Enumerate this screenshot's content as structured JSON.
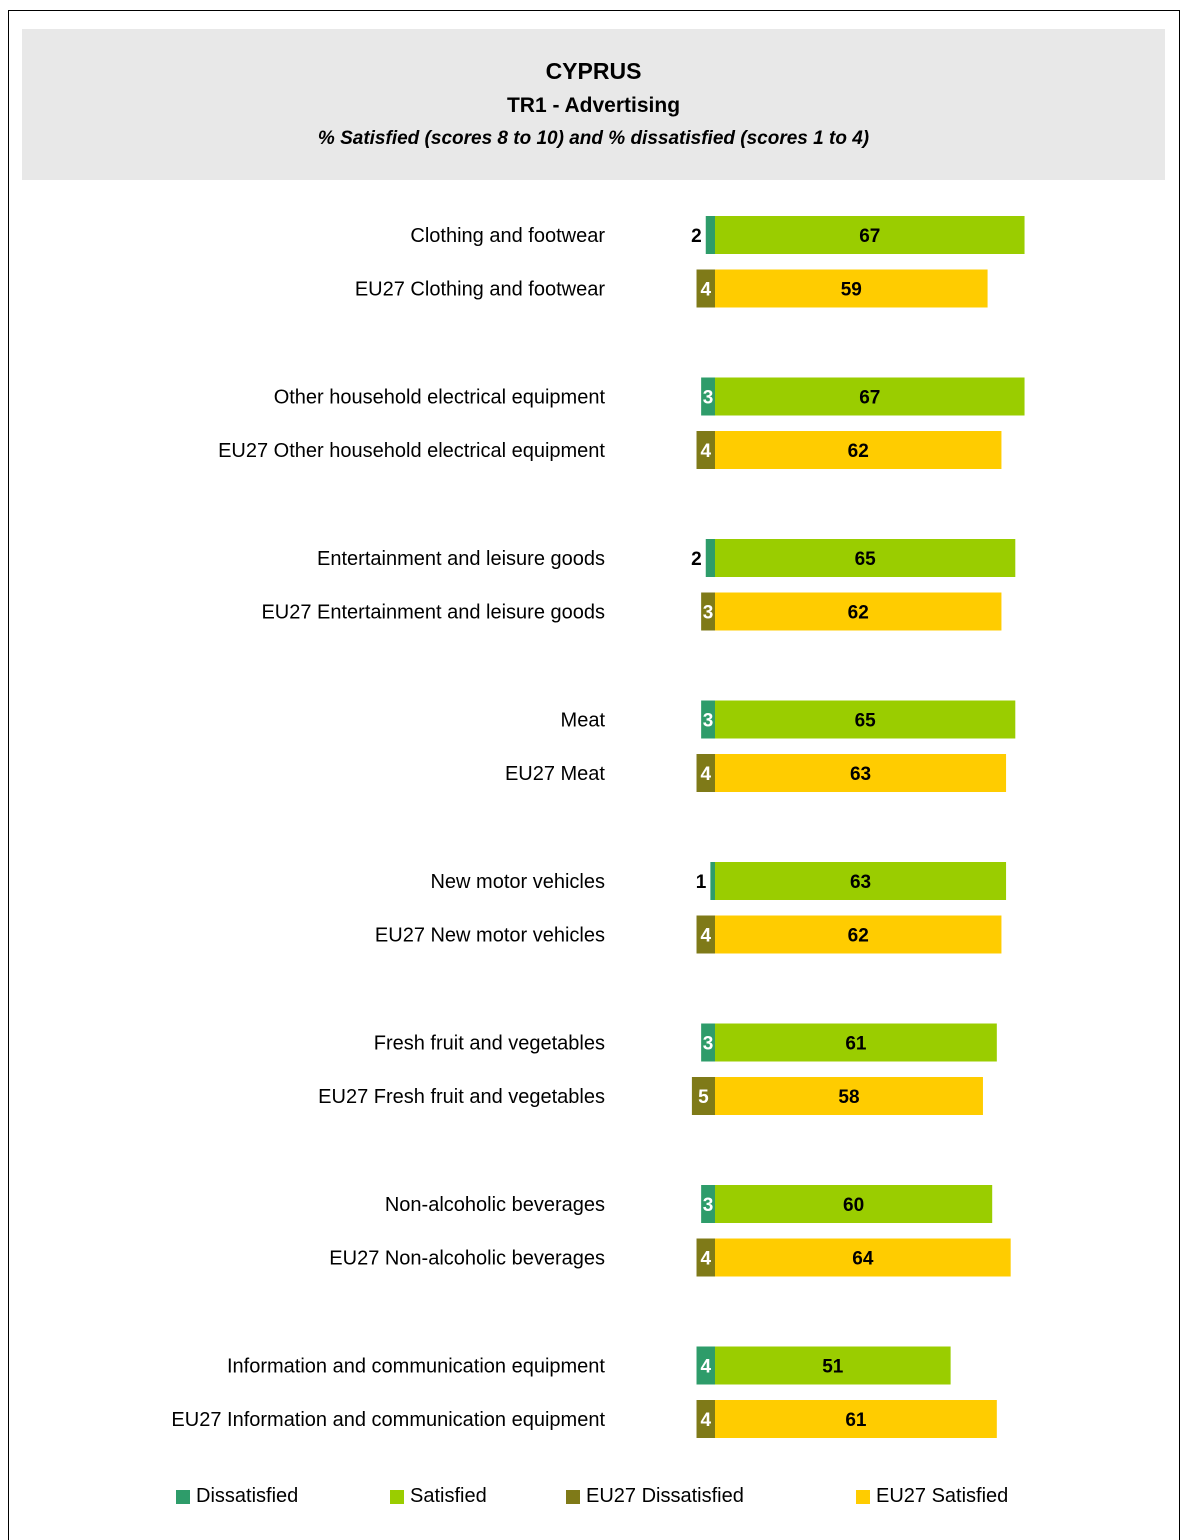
{
  "header": {
    "country": "CYPRUS",
    "indicator": "TR1 - Advertising",
    "subtitle": "%  Satisfied (scores 8 to 10) and % dissatisfied (scores 1 to 4)"
  },
  "colors": {
    "dissatisfied": "#2e9c6a",
    "satisfied": "#9acd00",
    "eu27_dissatisfied": "#7f7a18",
    "eu27_satisfied": "#ffcc00"
  },
  "chart_data": {
    "type": "bar",
    "orientation": "horizontal",
    "stacked": true,
    "categories": [
      "Clothing and footwear",
      "EU27 Clothing and footwear",
      "Other household electrical equipment",
      "EU27 Other household electrical equipment",
      "Entertainment and leisure goods",
      "EU27 Entertainment and leisure goods",
      "Meat",
      "EU27 Meat",
      "New motor vehicles",
      "EU27 New motor vehicles",
      "Fresh fruit and vegetables",
      "EU27 Fresh fruit and vegetables",
      "Non-alcoholic beverages",
      "EU27 Non-alcoholic beverages",
      "Information and communication equipment",
      "EU27 Information and communication equipment"
    ],
    "dissatisfied": [
      2,
      4,
      3,
      4,
      2,
      3,
      3,
      4,
      1,
      4,
      3,
      5,
      3,
      4,
      4,
      4
    ],
    "satisfied": [
      67,
      59,
      67,
      62,
      65,
      62,
      65,
      63,
      63,
      62,
      61,
      58,
      60,
      64,
      51,
      61
    ],
    "is_eu27": [
      false,
      true,
      false,
      true,
      false,
      true,
      false,
      true,
      false,
      true,
      false,
      true,
      false,
      true,
      false,
      true
    ],
    "legend": [
      "Dissatisfied",
      "Satisfied",
      "EU27 Dissatisfied",
      "EU27 Satisfied"
    ],
    "legend_placement": "bottom",
    "grid": false
  }
}
